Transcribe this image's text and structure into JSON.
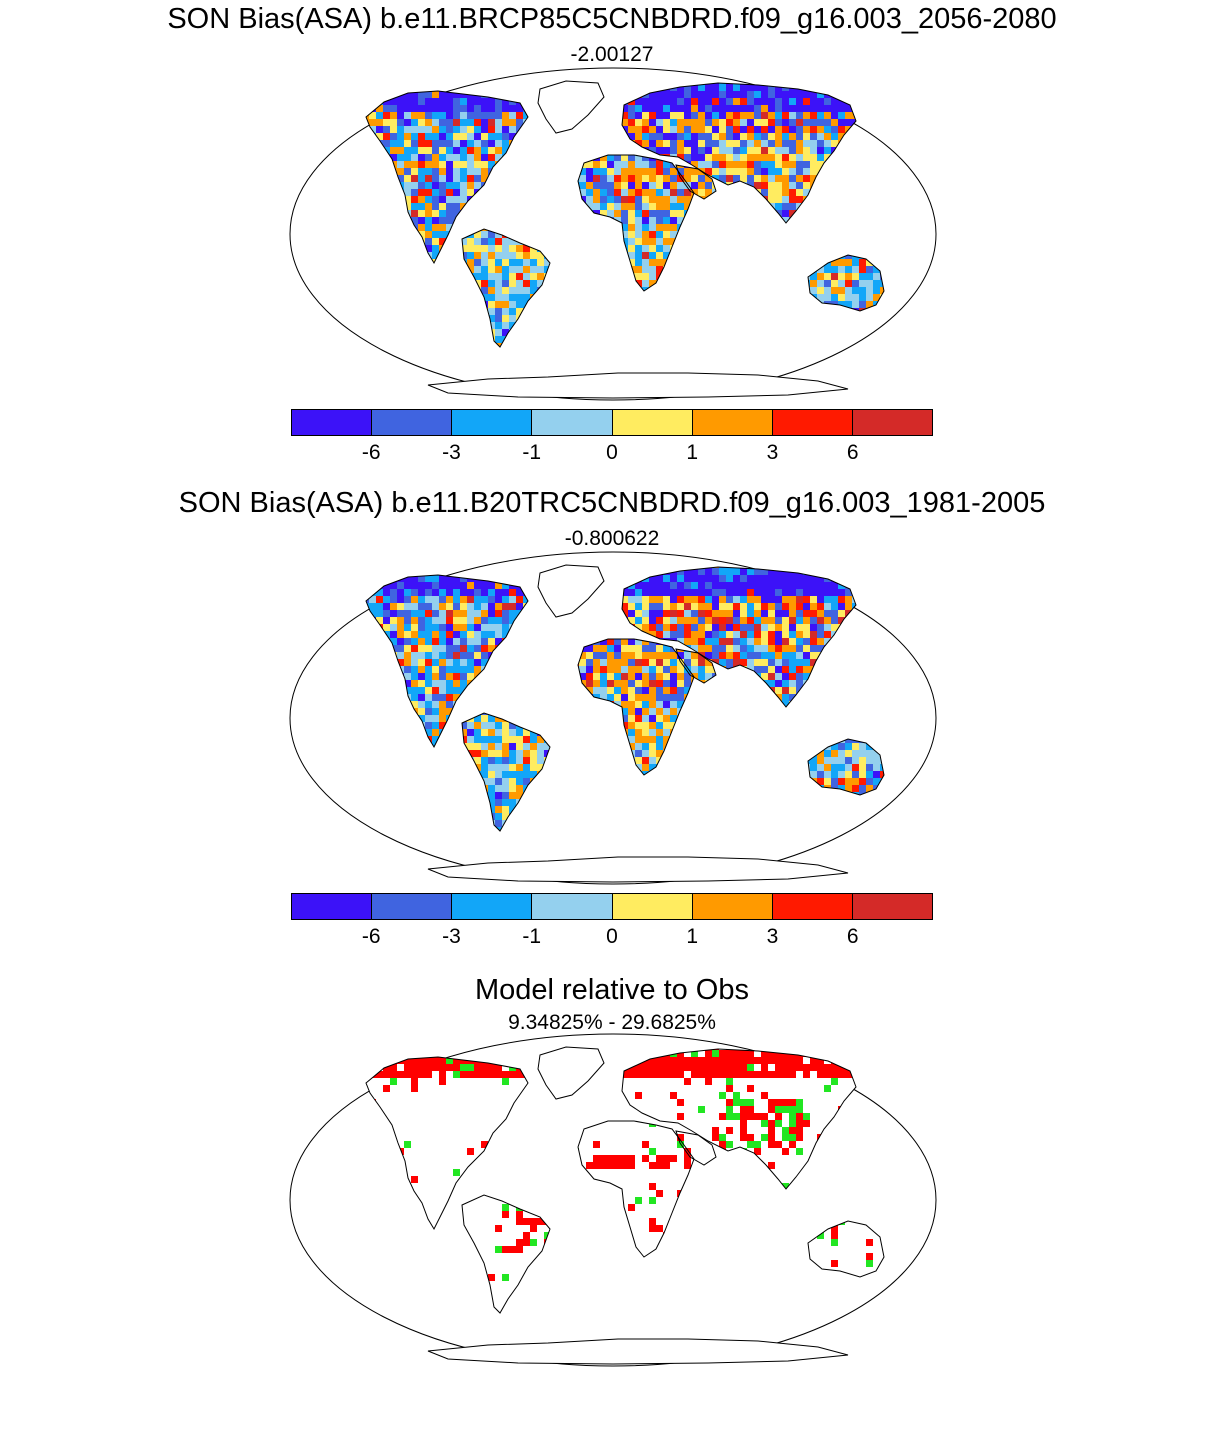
{
  "panels": [
    {
      "title": "SON Bias(ASA) b.e11.BRCP85C5CNBDRD.f09_g16.003_2056-2080",
      "subtitle": "-2.00127",
      "map_description": "global land bias map, Robinson-like projection"
    },
    {
      "title": "SON Bias(ASA) b.e11.B20TRC5CNBDRD.f09_g16.003_1981-2005",
      "subtitle": "-0.800622"
    },
    {
      "title": "Model relative to Obs",
      "subtitle": "9.34825% - 29.6825%"
    }
  ],
  "colorbar": {
    "colors": [
      "#3c12f8",
      "#4064e0",
      "#12a6f8",
      "#94d0ee",
      "#ffec60",
      "#ff9a00",
      "#ff1a00",
      "#d42a28"
    ],
    "labels": [
      "-6",
      "-3",
      "-1",
      "0",
      "1",
      "3",
      "6"
    ]
  },
  "relative_colors": {
    "worse": "#ff0000",
    "better": "#22e622"
  }
}
